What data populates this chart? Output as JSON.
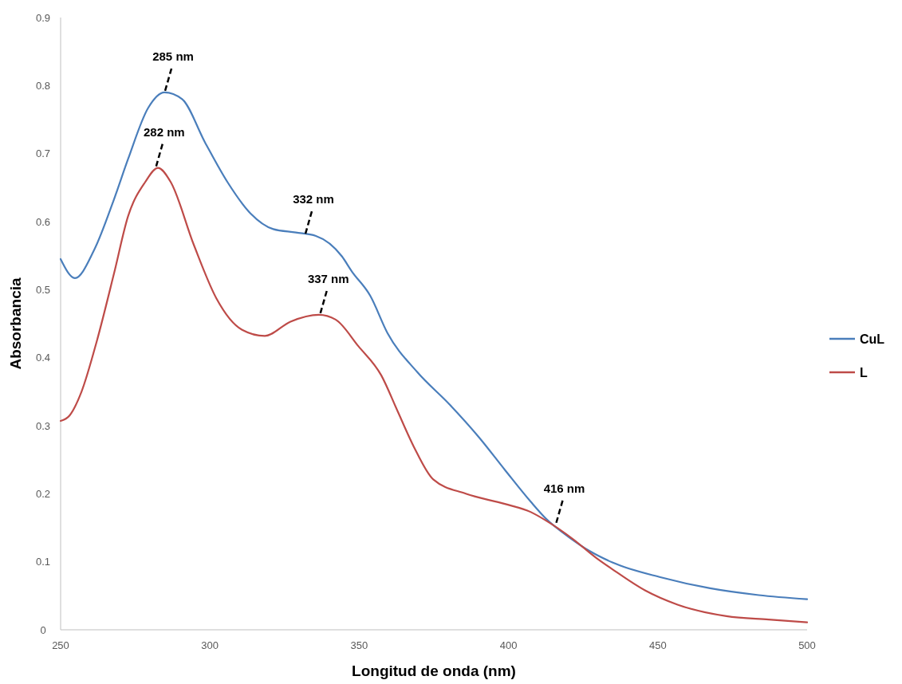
{
  "chart_data": {
    "type": "line",
    "xlabel": "Longitud de onda (nm)",
    "ylabel": "Absorbancia",
    "xlim": [
      250,
      500
    ],
    "xticks": [
      250,
      300,
      350,
      400,
      450,
      500
    ],
    "ylim": [
      0,
      0.9
    ],
    "yticks": [
      0,
      0.1,
      0.2,
      0.3,
      0.4,
      0.5,
      0.6,
      0.7,
      0.8,
      0.9
    ],
    "grid": false,
    "legend": "right",
    "marker": "none",
    "line_style": "solid",
    "series": [
      {
        "name": "CuL",
        "color": "#4a7ebb",
        "x": [
          250,
          254.8,
          261.2,
          267.9,
          272.6,
          279.3,
          284.8,
          290.7,
          298.3,
          305.9,
          313.6,
          321.2,
          328.8,
          335.5,
          344.2,
          347.5,
          353.7,
          359.5,
          369.4,
          380.3,
          390.1,
          398.8,
          407.5,
          412.4,
          420.6,
          427.1,
          434.8,
          451.1,
          467.5,
          483.8,
          500
        ],
        "values": [
          0.545,
          0.517,
          0.558,
          0.633,
          0.692,
          0.767,
          0.79,
          0.78,
          0.717,
          0.658,
          0.612,
          0.589,
          0.584,
          0.579,
          0.549,
          0.527,
          0.491,
          0.436,
          0.379,
          0.331,
          0.283,
          0.235,
          0.188,
          0.164,
          0.135,
          0.116,
          0.099,
          0.077,
          0.061,
          0.051,
          0.045
        ]
      },
      {
        "name": "L",
        "color": "#be4b48",
        "x": [
          250,
          253,
          257,
          262.1,
          267.9,
          272.6,
          278.3,
          282.6,
          286.9,
          294.6,
          302.2,
          310.8,
          318.4,
          327,
          336.5,
          342.1,
          349.7,
          357.4,
          362.8,
          368.3,
          374.8,
          385.7,
          398.8,
          407.5,
          412.4,
          421.7,
          429.3,
          434.8,
          445.7,
          456.6,
          473,
          487.1,
          500
        ],
        "values": [
          0.307,
          0.315,
          0.35,
          0.424,
          0.524,
          0.608,
          0.658,
          0.679,
          0.658,
          0.566,
          0.487,
          0.441,
          0.432,
          0.453,
          0.463,
          0.456,
          0.417,
          0.374,
          0.322,
          0.269,
          0.221,
          0.2,
          0.185,
          0.173,
          0.161,
          0.133,
          0.106,
          0.089,
          0.058,
          0.037,
          0.02,
          0.015,
          0.011
        ]
      }
    ],
    "annotations": [
      {
        "text": "285 nm",
        "x": 285,
        "y": 0.79
      },
      {
        "text": "282 nm",
        "x": 282,
        "y": 0.679
      },
      {
        "text": "332 nm",
        "x": 332,
        "y": 0.58
      },
      {
        "text": "337 nm",
        "x": 337,
        "y": 0.463
      },
      {
        "text": "416 nm",
        "x": 416,
        "y": 0.155
      }
    ]
  }
}
